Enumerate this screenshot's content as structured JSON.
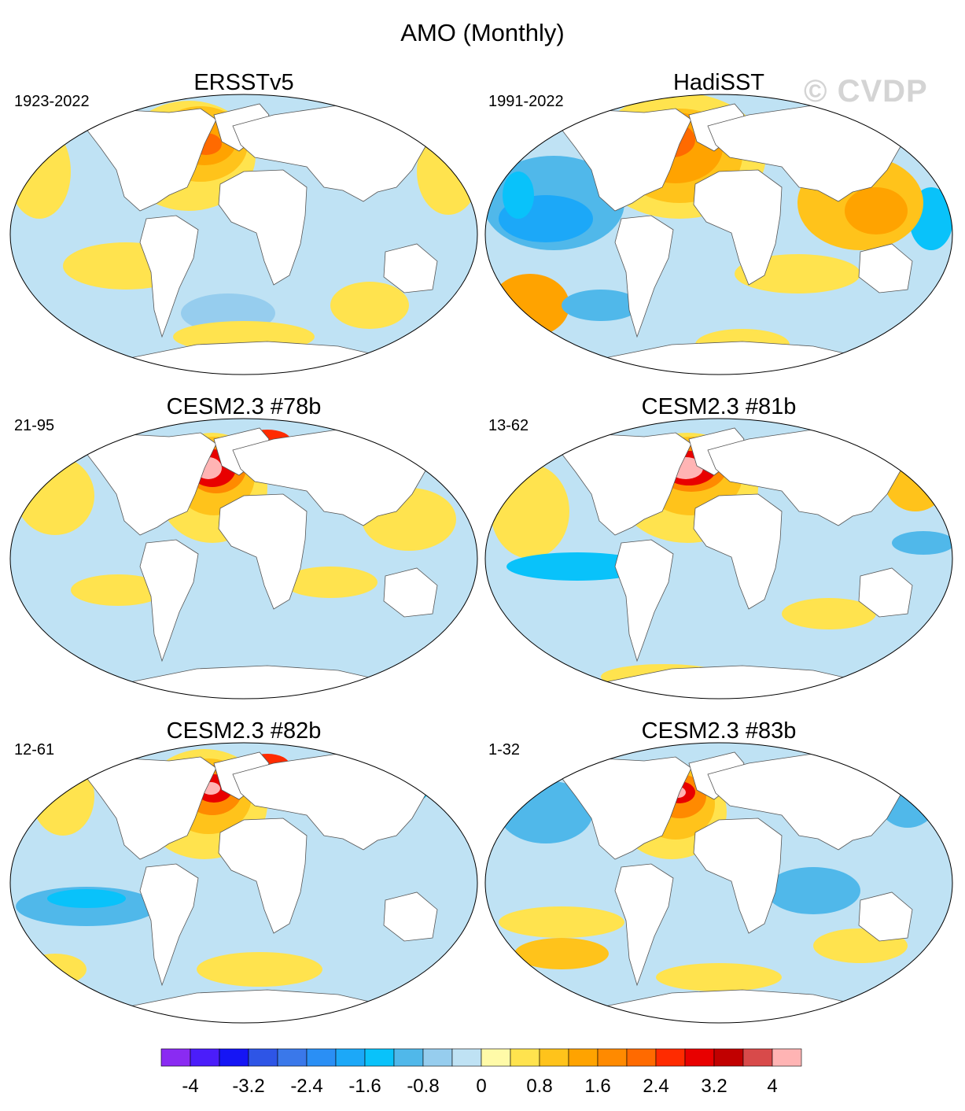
{
  "title": "AMO (Monthly)",
  "watermark": "© CVDP",
  "panels": [
    {
      "title": "ERSSTv5",
      "range": "1923-2022"
    },
    {
      "title": "HadiSST",
      "range": "1991-2022"
    },
    {
      "title": "CESM2.3 #78b",
      "range": "21-95"
    },
    {
      "title": "CESM2.3 #81b",
      "range": "13-62"
    },
    {
      "title": "CESM2.3 #82b",
      "range": "12-61"
    },
    {
      "title": "CESM2.3 #83b",
      "range": "1-32"
    }
  ],
  "colorbar": {
    "colors": [
      "#8a2bf2",
      "#4b1dfa",
      "#1515f5",
      "#2e55e6",
      "#3a78ea",
      "#2a8ff5",
      "#1ca8f8",
      "#09c2fa",
      "#50b8ea",
      "#96cdee",
      "#bfe2f4",
      "#fffaa8",
      "#ffe34e",
      "#ffc31b",
      "#ffa300",
      "#ff8a00",
      "#ff6a00",
      "#ff2b00",
      "#e80000",
      "#c10000",
      "#d84a4a",
      "#ffb4b4"
    ],
    "tick_labels": [
      "-4",
      "-3.2",
      "-2.4",
      "-1.6",
      "-0.8",
      "0",
      "0.8",
      "1.6",
      "2.4",
      "3.2",
      "4"
    ]
  }
}
